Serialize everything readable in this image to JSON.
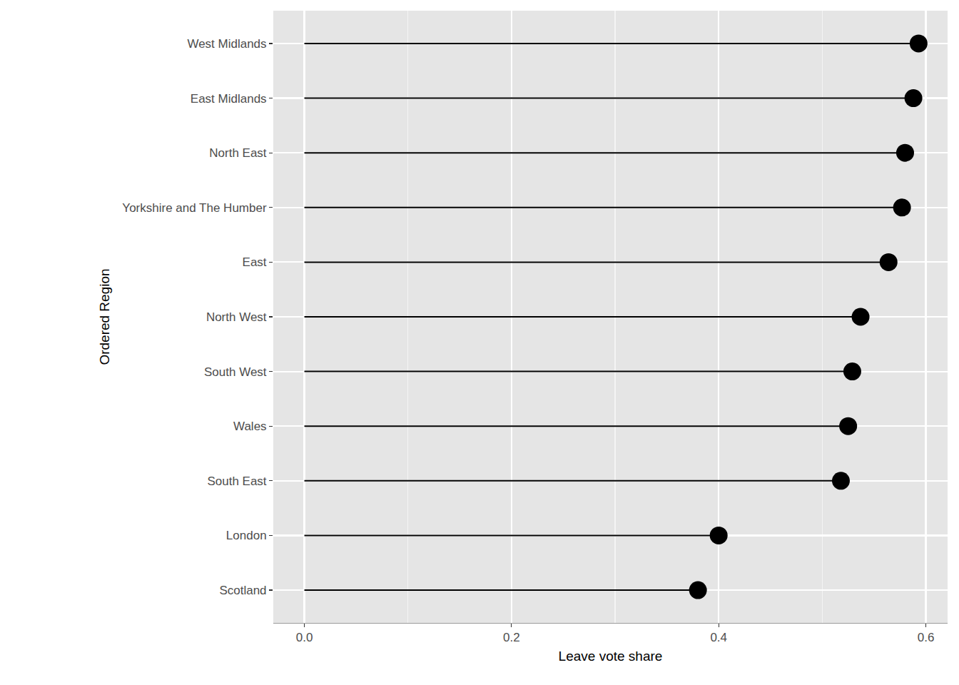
{
  "chart_data": {
    "type": "lollipop",
    "orientation": "horizontal",
    "x_label": "Leave vote share",
    "y_label": "Ordered Region",
    "categories": [
      "West Midlands",
      "East Midlands",
      "North East",
      "Yorkshire and The Humber",
      "East",
      "North West",
      "South West",
      "Wales",
      "South East",
      "London",
      "Scotland"
    ],
    "values": [
      0.593,
      0.588,
      0.58,
      0.577,
      0.564,
      0.537,
      0.529,
      0.525,
      0.518,
      0.4,
      0.38
    ],
    "color": "#000000",
    "xlim": [
      -0.03,
      0.621
    ],
    "xticks": [
      {
        "value": 0,
        "label": "0.0"
      },
      0.2,
      0.4,
      0.6
    ],
    "grid": true
  }
}
